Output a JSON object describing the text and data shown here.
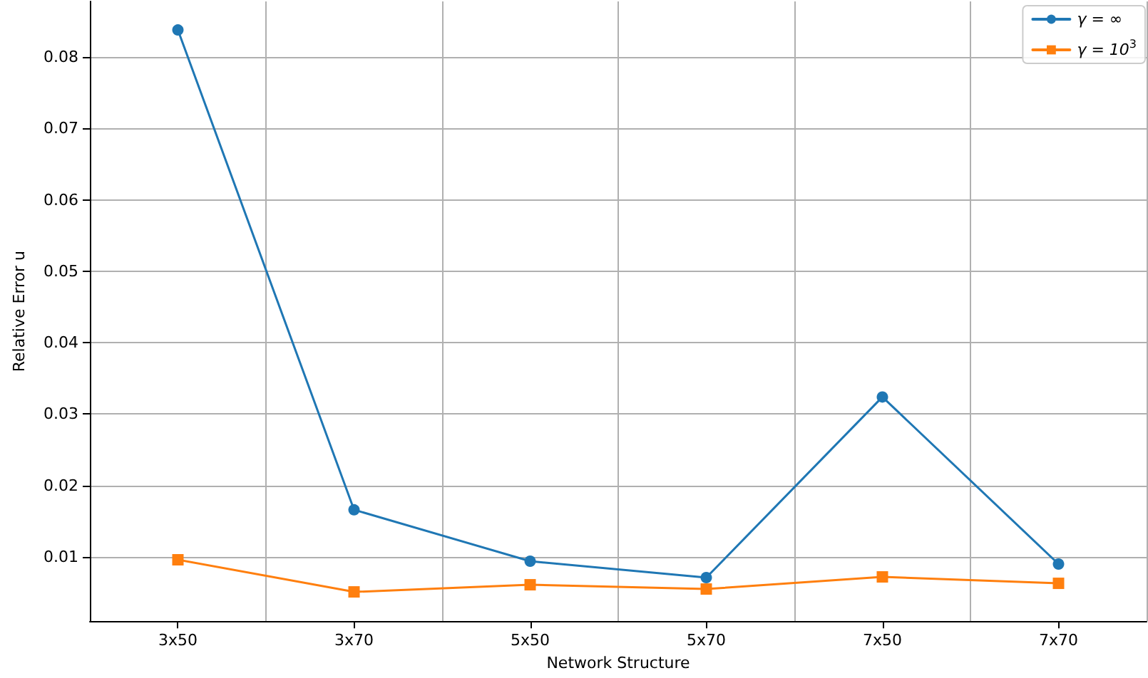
{
  "chart_data": {
    "type": "line",
    "xlabel": "Network Structure",
    "ylabel": "Relative Error u",
    "categories": [
      "3x50",
      "3x70",
      "5x50",
      "5x70",
      "7x50",
      "7x70"
    ],
    "series": [
      {
        "name": "γ = ∞",
        "color": "#1f77b4",
        "marker": "circle",
        "values": [
          0.0838,
          0.0166,
          0.0094,
          0.0071,
          0.0324,
          0.009
        ]
      },
      {
        "name": "γ = 10$^{3}$",
        "color": "#ff7f0e",
        "marker": "square",
        "values": [
          0.0096,
          0.0051,
          0.0061,
          0.0055,
          0.0072,
          0.0063
        ]
      }
    ],
    "ylim": [
      0.001,
      0.0878
    ],
    "yticks": [
      0.01,
      0.02,
      0.03,
      0.04,
      0.05,
      0.06,
      0.07,
      0.08
    ],
    "grid": true,
    "legend": "top right",
    "line_style": "solid"
  }
}
